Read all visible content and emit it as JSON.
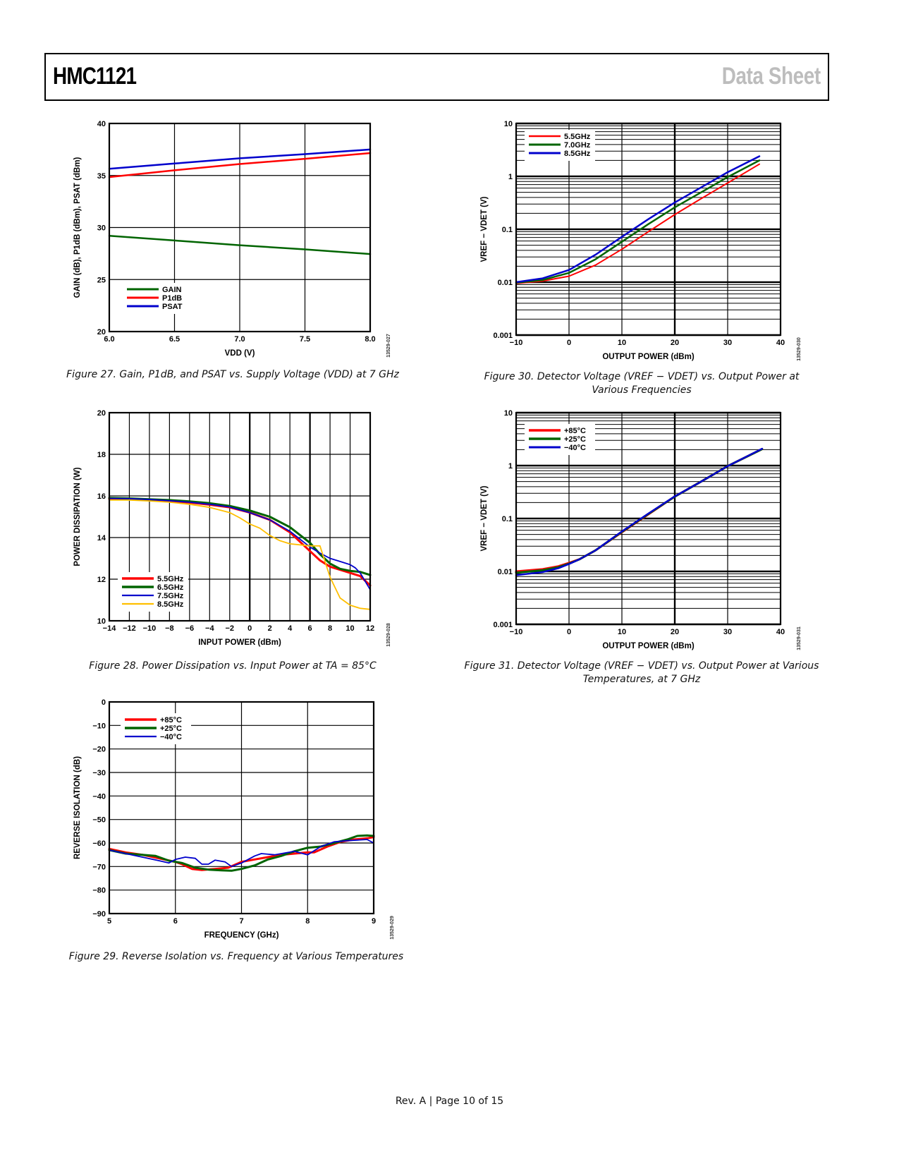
{
  "header": {
    "title": "HMC1121",
    "right_label": "Data Sheet"
  },
  "footer": {
    "text": "Rev. A | Page 10 of 15"
  },
  "captions": {
    "fig27": "Figure 27. Gain, P1dB, and PSAT vs. Supply Voltage (VDD) at 7 GHz",
    "fig28": "Figure 28. Power Dissipation vs. Input Power at TA = 85°C",
    "fig29": "Figure 29. Reverse Isolation vs. Frequency at Various Temperatures",
    "fig30_line1": "Figure 30. Detector Voltage (VREF − VDET) vs. Output Power at",
    "fig30_line2": "Various Frequencies",
    "fig31_line1": "Figure 31. Detector Voltage (VREF − VDET) vs. Output Power at Various",
    "fig31_line2": "Temperatures, at 7 GHz"
  },
  "chart_data": [
    {
      "id": "fig27",
      "type": "line",
      "code": "13529-027",
      "xlabel": "VDD (V)",
      "ylabel": "GAIN (dB), P1dB (dBm), PSAT (dBm)",
      "xlim": [
        6.0,
        8.0
      ],
      "ylim": [
        20,
        40
      ],
      "xticks": [
        6.0,
        6.5,
        7.0,
        7.5,
        8.0
      ],
      "xtick_labels": [
        "6.0",
        "6.5",
        "7.0",
        "7.5",
        "8.0"
      ],
      "yticks": [
        20,
        25,
        30,
        35,
        40
      ],
      "ytick_labels": [
        "20",
        "25",
        "30",
        "35",
        "40"
      ],
      "yscale": "linear",
      "grid": true,
      "legend": "bottom-left",
      "series": [
        {
          "name": "GAIN",
          "color": "#006400",
          "width": 2.5,
          "x": [
            6.0,
            6.5,
            7.0,
            7.5,
            8.0
          ],
          "y": [
            29.2,
            28.75,
            28.3,
            27.9,
            27.45
          ]
        },
        {
          "name": "P1dB",
          "color": "#ff0000",
          "width": 2.5,
          "x": [
            6.0,
            6.5,
            7.0,
            7.5,
            8.0
          ],
          "y": [
            34.85,
            35.5,
            36.1,
            36.6,
            37.15
          ]
        },
        {
          "name": "PSAT",
          "color": "#0000cc",
          "width": 2.5,
          "x": [
            6.0,
            6.5,
            7.0,
            7.5,
            8.0
          ],
          "y": [
            35.65,
            36.15,
            36.65,
            37.05,
            37.5
          ]
        }
      ]
    },
    {
      "id": "fig28",
      "type": "line",
      "code": "13529-028",
      "xlabel": "INPUT POWER (dBm)",
      "ylabel": "POWER DISSIPATION (W)",
      "xlim": [
        -14,
        12
      ],
      "ylim": [
        10,
        20
      ],
      "xticks": [
        -14,
        -12,
        -10,
        -8,
        -6,
        -4,
        -2,
        0,
        2,
        4,
        6,
        8,
        10,
        12
      ],
      "xtick_labels": [
        "−14",
        "−12",
        "−10",
        "−8",
        "−6",
        "−4",
        "−2",
        "0",
        "2",
        "4",
        "6",
        "8",
        "10",
        "12"
      ],
      "yticks": [
        10,
        12,
        14,
        16,
        18,
        20
      ],
      "ytick_labels": [
        "10",
        "12",
        "14",
        "16",
        "18",
        "20"
      ],
      "yscale": "linear",
      "grid": true,
      "legend": "bottom-left",
      "series": [
        {
          "name": "5.5GHz",
          "color": "#ff0000",
          "width": 3,
          "x": [
            -14,
            -12,
            -10,
            -8,
            -6,
            -4,
            -2,
            0,
            2,
            4,
            6,
            7,
            8,
            9,
            10,
            11,
            12
          ],
          "y": [
            15.85,
            15.85,
            15.82,
            15.76,
            15.68,
            15.58,
            15.45,
            15.2,
            14.85,
            14.25,
            13.35,
            12.9,
            12.6,
            12.45,
            12.3,
            12.15,
            11.7
          ]
        },
        {
          "name": "6.5GHz",
          "color": "#006400",
          "width": 3,
          "x": [
            -14,
            -12,
            -10,
            -8,
            -6,
            -4,
            -2,
            0,
            2,
            4,
            6,
            7,
            8,
            9,
            10,
            11,
            12
          ],
          "y": [
            15.9,
            15.88,
            15.84,
            15.8,
            15.74,
            15.65,
            15.52,
            15.3,
            15.0,
            14.5,
            13.75,
            13.2,
            12.75,
            12.5,
            12.4,
            12.35,
            12.2
          ]
        },
        {
          "name": "7.5GHz",
          "color": "#0000cc",
          "width": 1.8,
          "x": [
            -14,
            -12,
            -10,
            -8,
            -6,
            -4,
            -2,
            0,
            2,
            4,
            6,
            7,
            8,
            9,
            10,
            10.5,
            11,
            12
          ],
          "y": [
            15.88,
            15.87,
            15.83,
            15.77,
            15.7,
            15.6,
            15.47,
            15.2,
            14.85,
            14.3,
            13.55,
            13.25,
            13.0,
            12.85,
            12.7,
            12.55,
            12.3,
            11.5
          ]
        },
        {
          "name": "8.5GHz",
          "color": "#ffbf00",
          "width": 1.8,
          "x": [
            -14,
            -12,
            -10,
            -8,
            -6,
            -4,
            -2,
            -1,
            0,
            1,
            2,
            3,
            4,
            5,
            6,
            7,
            7.4,
            8,
            9,
            10,
            11,
            12
          ],
          "y": [
            15.8,
            15.8,
            15.76,
            15.7,
            15.6,
            15.45,
            15.2,
            14.95,
            14.65,
            14.45,
            14.1,
            13.85,
            13.7,
            13.65,
            13.6,
            13.6,
            13.0,
            12.1,
            11.1,
            10.75,
            10.6,
            10.55
          ]
        }
      ]
    },
    {
      "id": "fig29",
      "type": "line",
      "code": "13529-029",
      "xlabel": "FREQUENCY (GHz)",
      "ylabel": "REVERSE ISOLATION (dB)",
      "xlim": [
        5,
        9
      ],
      "ylim": [
        -90,
        0
      ],
      "xticks": [
        5,
        6,
        7,
        8,
        9
      ],
      "xtick_labels": [
        "5",
        "6",
        "7",
        "8",
        "9"
      ],
      "yticks": [
        -90,
        -80,
        -70,
        -60,
        -50,
        -40,
        -30,
        -20,
        -10,
        0
      ],
      "ytick_labels": [
        "−90",
        "−80",
        "−70",
        "−60",
        "−50",
        "−40",
        "−30",
        "−20",
        "−10",
        "0"
      ],
      "yscale": "linear",
      "grid": true,
      "legend": "top-left",
      "series": [
        {
          "name": "+85°C",
          "color": "#ff0000",
          "width": 3,
          "x": [
            5.0,
            5.25,
            5.5,
            5.75,
            6.0,
            6.1,
            6.25,
            6.4,
            6.6,
            6.8,
            7.0,
            7.2,
            7.4,
            7.6,
            7.8,
            8.0,
            8.1,
            8.3,
            8.5,
            8.7,
            8.9,
            9.0
          ],
          "y": [
            -62.5,
            -64,
            -65,
            -66.5,
            -68,
            -69,
            -71,
            -71.5,
            -71,
            -70.5,
            -68,
            -67,
            -66,
            -65,
            -64.5,
            -64,
            -64,
            -61.5,
            -59.5,
            -58.5,
            -58,
            -57.5
          ]
        },
        {
          "name": "+25°C",
          "color": "#006400",
          "width": 3,
          "x": [
            5.0,
            5.25,
            5.5,
            5.7,
            5.9,
            6.1,
            6.3,
            6.5,
            6.7,
            6.85,
            7.0,
            7.2,
            7.4,
            7.6,
            7.8,
            8.0,
            8.2,
            8.4,
            8.6,
            8.75,
            8.9,
            9.0
          ],
          "y": [
            -63,
            -64.5,
            -65,
            -65.5,
            -67.5,
            -68.5,
            -70.5,
            -71.3,
            -71.6,
            -71.8,
            -71,
            -69.5,
            -67,
            -65.5,
            -63.5,
            -62,
            -61.5,
            -60,
            -58.5,
            -57,
            -56.8,
            -57
          ]
        },
        {
          "name": "−40°C",
          "color": "#0000cc",
          "width": 1.8,
          "x": [
            5.0,
            5.25,
            5.5,
            5.75,
            5.9,
            6.0,
            6.15,
            6.3,
            6.4,
            6.5,
            6.6,
            6.75,
            6.85,
            7.0,
            7.2,
            7.3,
            7.5,
            7.8,
            8.0,
            8.2,
            8.4,
            8.6,
            8.9,
            9.0
          ],
          "y": [
            -63,
            -64.5,
            -66,
            -67.5,
            -68.5,
            -67,
            -66,
            -66.5,
            -69,
            -69,
            -67.3,
            -68,
            -70,
            -68.5,
            -65.5,
            -64.5,
            -65,
            -63.5,
            -65,
            -61.5,
            -59.5,
            -59,
            -58.5,
            -60
          ]
        }
      ]
    },
    {
      "id": "fig30",
      "type": "line",
      "code": "13529-030",
      "xlabel": "OUTPUT POWER (dBm)",
      "ylabel": "VREF − VDET (V)",
      "xlim": [
        -10,
        40
      ],
      "ylim": [
        0.001,
        10
      ],
      "xticks": [
        -10,
        0,
        10,
        20,
        30,
        40
      ],
      "xtick_labels": [
        "−10",
        "0",
        "10",
        "20",
        "30",
        "40"
      ],
      "yticks": [
        0.001,
        0.01,
        0.1,
        1,
        10
      ],
      "ytick_labels": [
        "0.001",
        "0.01",
        "0.1",
        "1",
        "10"
      ],
      "yscale": "log",
      "grid": true,
      "legend": "top-left",
      "series": [
        {
          "name": "5.5GHz",
          "color": "#ff0000",
          "width": 2,
          "x": [
            -10,
            -5,
            0,
            5,
            10,
            15,
            20,
            25,
            30,
            36
          ],
          "y": [
            0.0095,
            0.0105,
            0.013,
            0.021,
            0.042,
            0.09,
            0.19,
            0.38,
            0.75,
            1.7
          ]
        },
        {
          "name": "7.0GHz",
          "color": "#006400",
          "width": 2.5,
          "x": [
            -10,
            -5,
            0,
            5,
            10,
            15,
            20,
            25,
            30,
            36
          ],
          "y": [
            0.0098,
            0.011,
            0.015,
            0.027,
            0.058,
            0.125,
            0.26,
            0.5,
            0.97,
            2.0
          ]
        },
        {
          "name": "8.5GHz",
          "color": "#0000cc",
          "width": 2.5,
          "x": [
            -10,
            -5,
            0,
            5,
            10,
            15,
            20,
            25,
            30,
            36
          ],
          "y": [
            0.01,
            0.0118,
            0.017,
            0.033,
            0.072,
            0.155,
            0.32,
            0.62,
            1.2,
            2.4
          ]
        }
      ]
    },
    {
      "id": "fig31",
      "type": "line",
      "code": "13529-031",
      "xlabel": "OUTPUT POWER (dBm)",
      "ylabel": "VREF − VDET (V)",
      "xlim": [
        -10,
        40
      ],
      "ylim": [
        0.001,
        10
      ],
      "xticks": [
        -10,
        0,
        10,
        20,
        30,
        40
      ],
      "xtick_labels": [
        "−10",
        "0",
        "10",
        "20",
        "30",
        "40"
      ],
      "yticks": [
        0.001,
        0.01,
        0.1,
        1,
        10
      ],
      "ytick_labels": [
        "0.001",
        "0.01",
        "0.1",
        "1",
        "10"
      ],
      "yscale": "log",
      "grid": true,
      "legend": "top-left",
      "series": [
        {
          "name": "+85°C",
          "color": "#ff0000",
          "width": 3,
          "x": [
            -10,
            -5,
            -2,
            0,
            2,
            5,
            10,
            15,
            20,
            25,
            30,
            36.5
          ],
          "y": [
            0.01,
            0.011,
            0.0125,
            0.0145,
            0.017,
            0.025,
            0.055,
            0.12,
            0.26,
            0.5,
            0.98,
            2.05
          ]
        },
        {
          "name": "+25°C",
          "color": "#006400",
          "width": 3,
          "x": [
            -10,
            -5,
            -2,
            0,
            2,
            5,
            10,
            15,
            20,
            25,
            30,
            36.5
          ],
          "y": [
            0.0095,
            0.0105,
            0.012,
            0.014,
            0.017,
            0.025,
            0.056,
            0.122,
            0.26,
            0.5,
            0.98,
            2.05
          ]
        },
        {
          "name": "−40°C",
          "color": "#0000cc",
          "width": 2.5,
          "x": [
            -10,
            -5,
            -2,
            0,
            2,
            5,
            10,
            15,
            20,
            25,
            30,
            36.5
          ],
          "y": [
            0.0085,
            0.0097,
            0.0115,
            0.0138,
            0.017,
            0.025,
            0.057,
            0.124,
            0.262,
            0.5,
            0.98,
            2.08
          ]
        }
      ]
    }
  ]
}
